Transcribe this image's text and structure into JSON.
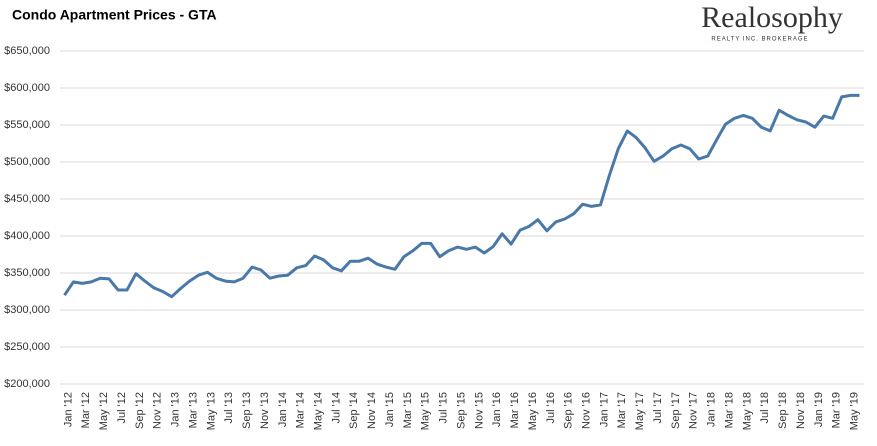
{
  "chart_data": {
    "type": "line",
    "title": "Condo Apartment Prices - GTA",
    "brand": "Realosophy",
    "brand_subtitle": "REALTY INC. BROKERAGE",
    "categories": [
      "Jan '12",
      null,
      "Mar '12",
      null,
      "May '12",
      null,
      "Jul '12",
      null,
      "Sep '12",
      null,
      "Nov '12",
      null,
      "Jan '13",
      null,
      "Mar '13",
      null,
      "May '13",
      null,
      "Jul '13",
      null,
      "Sep '13",
      null,
      "Nov '13",
      null,
      "Jan '14",
      null,
      "Mar '14",
      null,
      "May '14",
      null,
      "Jul '14",
      null,
      "Sep '14",
      null,
      "Nov '14",
      null,
      "Jan '15",
      null,
      "Mar '15",
      null,
      "May '15",
      null,
      "Jul '15",
      null,
      "Sep '15",
      null,
      "Nov '15",
      null,
      "Jan '16",
      null,
      "Mar '16",
      null,
      "May '16",
      null,
      "Jul '16",
      null,
      "Sep '16",
      null,
      "Nov '16",
      null,
      "Jan '17",
      null,
      "Mar '17",
      null,
      "May '17",
      null,
      "Jul '17",
      null,
      "Sep '17",
      null,
      "Nov '17",
      null,
      "Jan '18",
      null,
      "Mar '18",
      null,
      "May '18",
      null,
      "Jul '18",
      null,
      "Sep '18",
      null,
      "Nov '18",
      null,
      "Jan '19",
      null,
      "Mar '19",
      null,
      "May '19",
      null
    ],
    "series": [
      {
        "name": "Condo Apartment Prices",
        "color": "#4a78a8",
        "values": [
          320000,
          338000,
          336000,
          338000,
          343000,
          342000,
          327000,
          327000,
          349000,
          339000,
          330000,
          325000,
          318000,
          329000,
          339000,
          347000,
          351000,
          343000,
          339000,
          338000,
          343000,
          358000,
          354000,
          343000,
          346000,
          347000,
          357000,
          360000,
          373000,
          368000,
          357000,
          353000,
          366000,
          366000,
          370000,
          362000,
          358000,
          355000,
          372000,
          380000,
          390000,
          390000,
          372000,
          380000,
          385000,
          382000,
          385000,
          377000,
          386000,
          403000,
          389000,
          408000,
          413000,
          422000,
          407000,
          419000,
          423000,
          430000,
          443000,
          440000,
          442000,
          482000,
          518000,
          542000,
          533000,
          519000,
          501000,
          508000,
          518000,
          523000,
          518000,
          504000,
          508000,
          530000,
          551000,
          559000,
          563000,
          559000,
          547000,
          542000,
          570000,
          563000,
          557000,
          554000,
          547000,
          562000,
          559000,
          588000,
          590000,
          590000
        ]
      }
    ],
    "ylim": [
      200000,
      650000
    ],
    "yticks": [
      {
        "value": 200000,
        "label": "$200,000"
      },
      {
        "value": 250000,
        "label": "$250,000"
      },
      {
        "value": 300000,
        "label": "$300,000"
      },
      {
        "value": 350000,
        "label": "$350,000"
      },
      {
        "value": 400000,
        "label": "$400,000"
      },
      {
        "value": 450000,
        "label": "$450,000"
      },
      {
        "value": 500000,
        "label": "$500,000"
      },
      {
        "value": 550000,
        "label": "$550,000"
      },
      {
        "value": 600000,
        "label": "$600,000"
      },
      {
        "value": 650000,
        "label": "$650,000"
      }
    ],
    "grid": true
  }
}
